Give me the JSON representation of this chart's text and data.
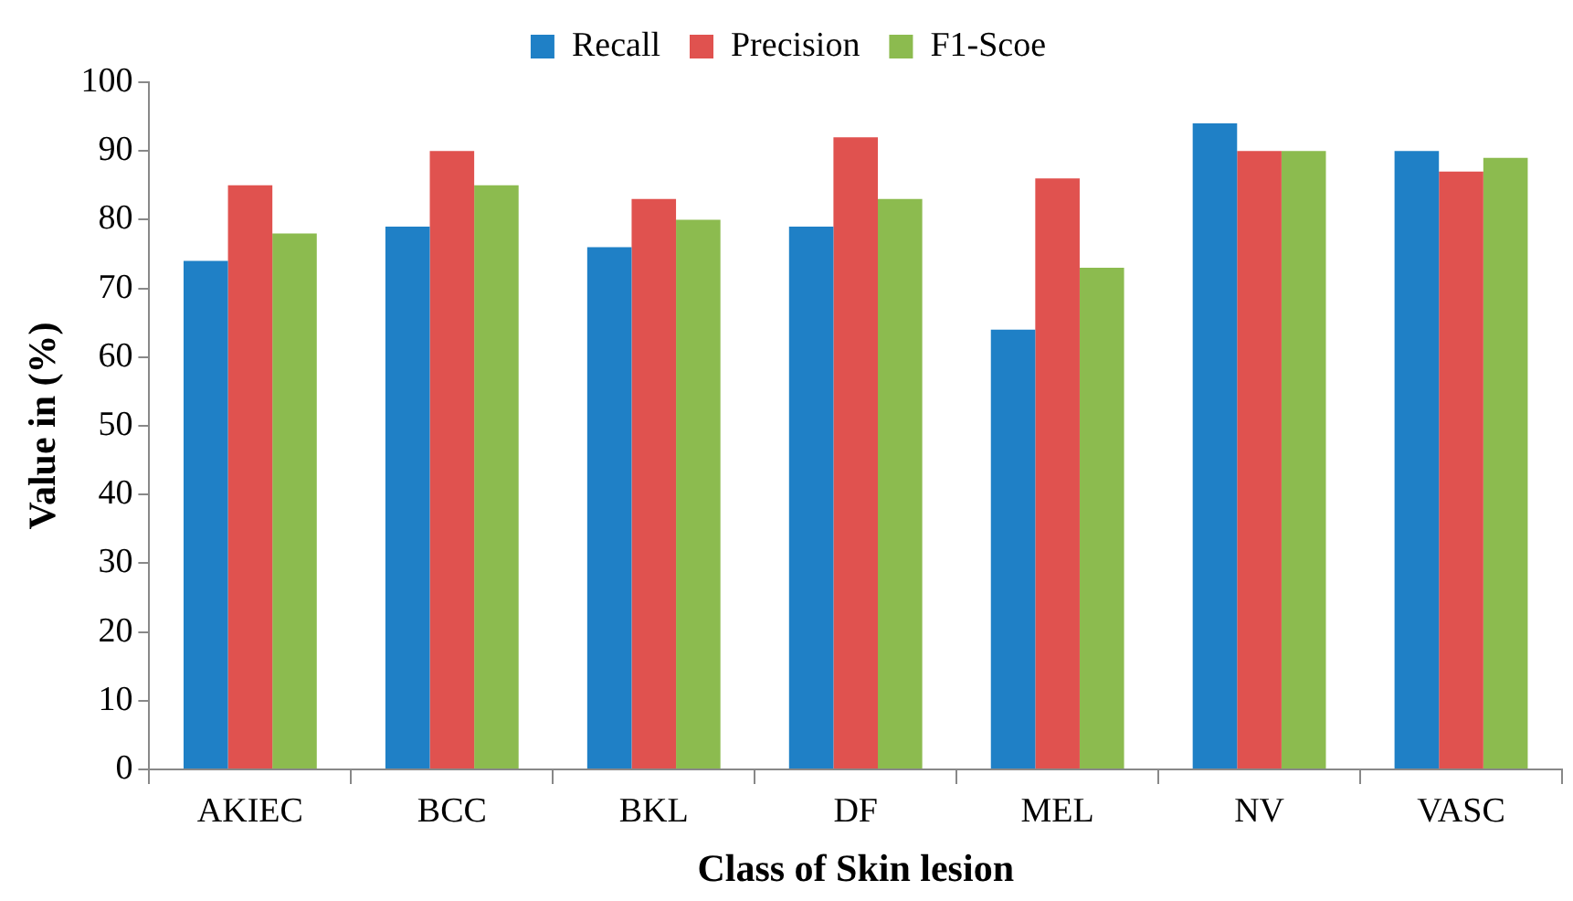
{
  "chart_data": {
    "type": "bar",
    "xlabel": "Class of Skin lesion",
    "ylabel": "Value in (%)",
    "categories": [
      "AKIEC",
      "BCC",
      "BKL",
      "DF",
      "MEL",
      "NV",
      "VASC"
    ],
    "series": [
      {
        "name": "Recall",
        "color": "#1f80c6",
        "values": [
          74,
          79,
          76,
          79,
          64,
          94,
          90
        ]
      },
      {
        "name": "Precision",
        "color": "#e0524f",
        "values": [
          85,
          90,
          83,
          92,
          86,
          90,
          87
        ]
      },
      {
        "name": "F1-Scoe",
        "color": "#8cbb4f",
        "values": [
          78,
          85,
          80,
          83,
          73,
          90,
          89
        ]
      }
    ],
    "ylim": [
      0,
      100
    ],
    "yticks": [
      0,
      10,
      20,
      30,
      40,
      50,
      60,
      70,
      80,
      90,
      100
    ],
    "grid": false,
    "legend": "top"
  }
}
